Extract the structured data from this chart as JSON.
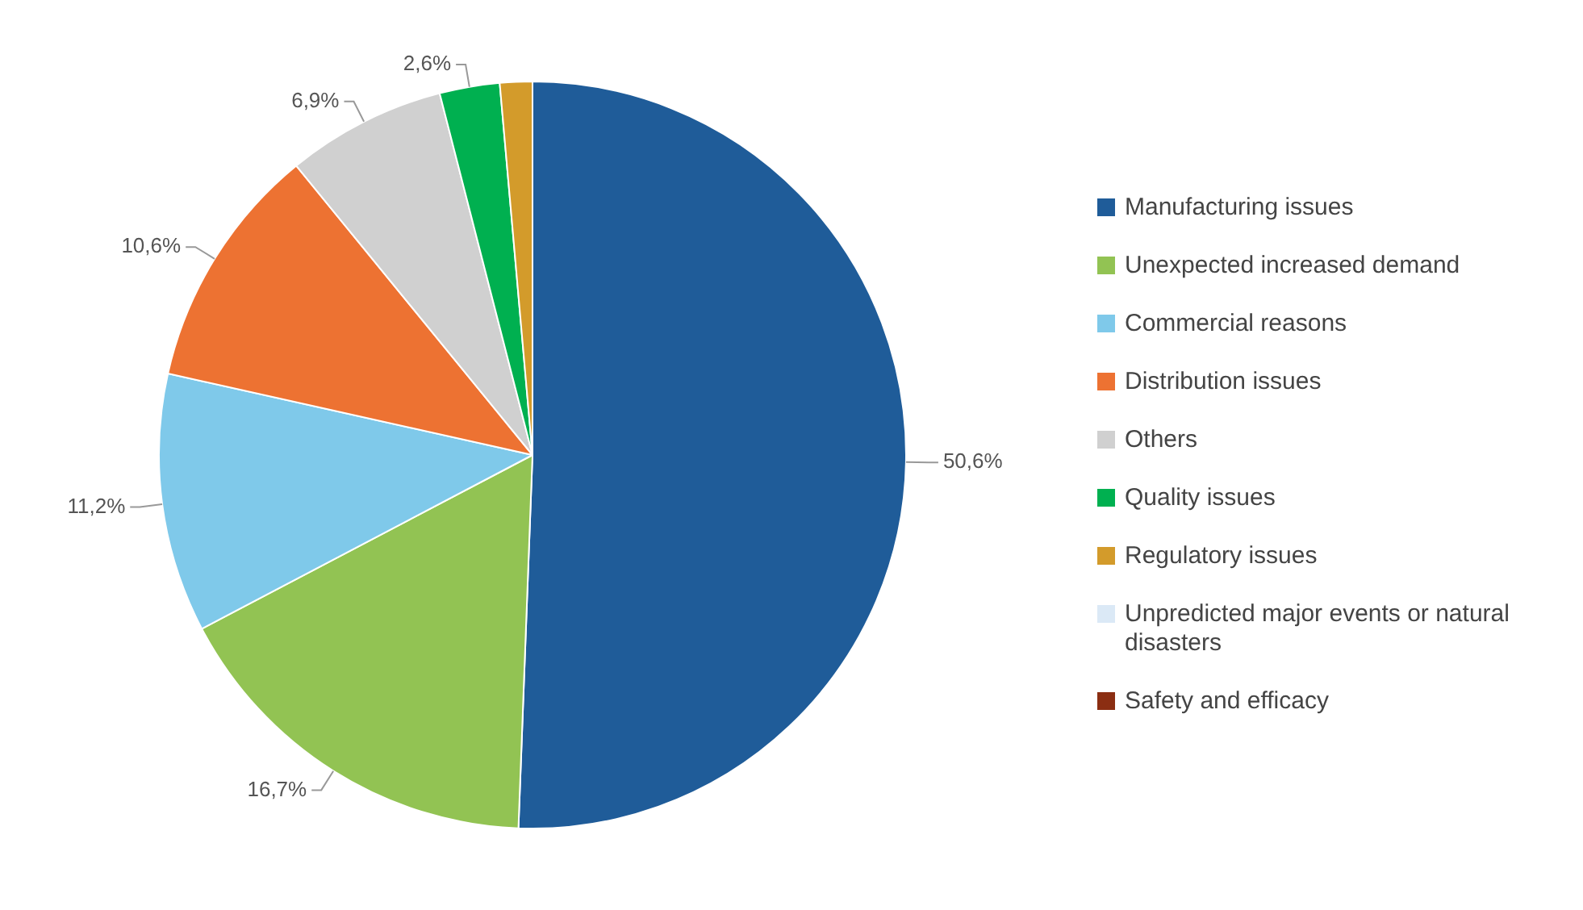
{
  "chart_data": {
    "type": "pie",
    "categories": [
      "Manufacturing issues",
      "Unexpected increased demand",
      "Commercial reasons",
      "Distribution issues",
      "Others",
      "Quality issues",
      "Regulatory issues",
      "Unpredicted major events or natural disasters",
      "Safety and efficacy"
    ],
    "values": [
      50.6,
      16.7,
      11.2,
      10.6,
      6.9,
      2.6,
      1.4,
      0,
      0
    ],
    "colors": [
      "#1f5c99",
      "#92c353",
      "#7fc9ea",
      "#ed7232",
      "#d0d0d0",
      "#00b050",
      "#d39b2b",
      "#dbe9f6",
      "#8b2e12"
    ],
    "value_labels": [
      "50,6%",
      "16,7%",
      "11,2%",
      "10,6%",
      "6,9%",
      "2,6%",
      null,
      null,
      null
    ],
    "legend": "right"
  }
}
